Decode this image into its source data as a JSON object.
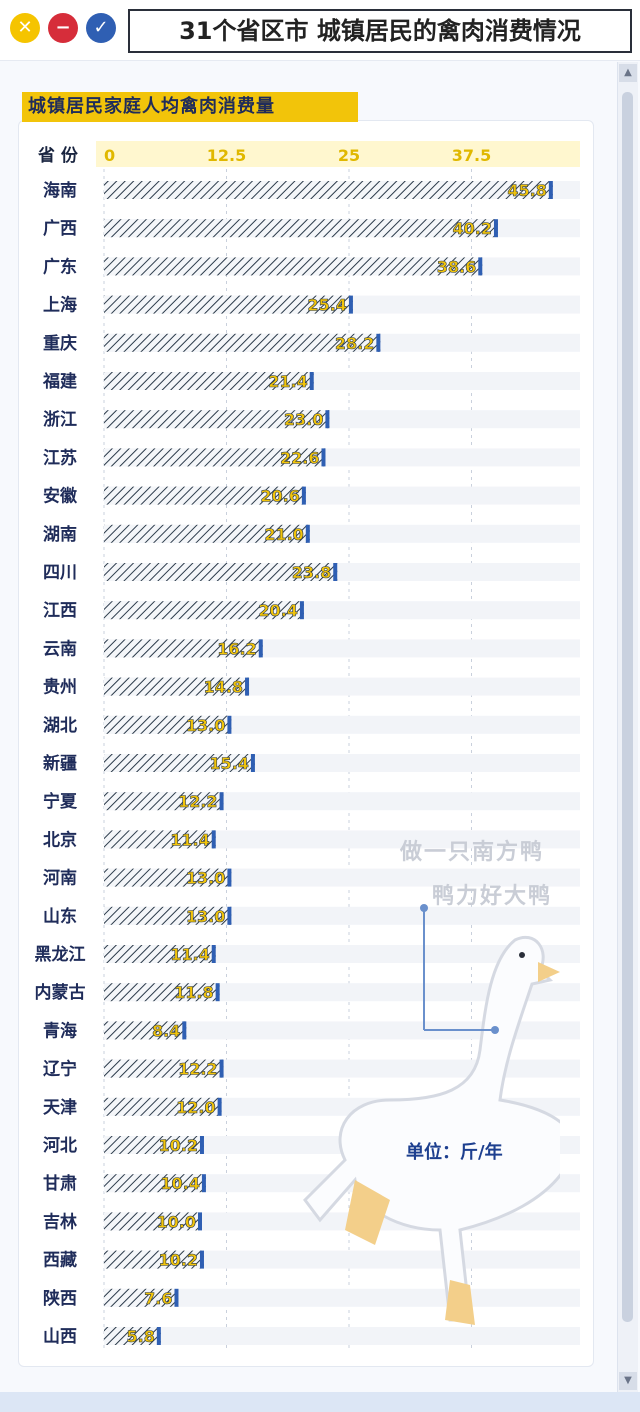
{
  "window": {
    "title": "31个省区市 城镇居民的禽肉消费情况",
    "buttons": {
      "close_icon": "x-icon",
      "minimize_icon": "minus-icon",
      "ok_icon": "check-icon"
    }
  },
  "subtitle": "城镇居民家庭人均禽肉消费量",
  "slogan": [
    "做一只南方鸭",
    "鸭力好大鸭"
  ],
  "unit_label": "单位：斤/年",
  "colors": {
    "accent": "#f2c40a",
    "bar_hatch": "#2b3a4a",
    "bar_end": "#2f5fb3",
    "title_border": "#2a2f3a"
  },
  "chart_data": {
    "type": "bar",
    "orientation": "horizontal",
    "category_header": "省 份",
    "xlim": [
      0,
      50
    ],
    "xticks": [
      "0",
      "12.5",
      "25",
      "37.5"
    ],
    "xtick_values": [
      0,
      12.5,
      25,
      37.5
    ],
    "grid": true,
    "unit": "单位：斤/年",
    "categories": [
      "海南",
      "广西",
      "广东",
      "上海",
      "重庆",
      "福建",
      "浙江",
      "江苏",
      "安徽",
      "湖南",
      "四川",
      "江西",
      "云南",
      "贵州",
      "湖北",
      "新疆",
      "宁夏",
      "北京",
      "河南",
      "山东",
      "黑龙江",
      "内蒙古",
      "青海",
      "辽宁",
      "天津",
      "河北",
      "甘肃",
      "吉林",
      "西藏",
      "陕西",
      "山西"
    ],
    "values": [
      45.8,
      40.2,
      38.6,
      25.4,
      28.2,
      21.4,
      23.0,
      22.6,
      20.6,
      21.0,
      23.8,
      20.4,
      16.2,
      14.8,
      13.0,
      15.4,
      12.2,
      11.4,
      13.0,
      13.0,
      11.4,
      11.8,
      8.4,
      12.2,
      12.0,
      10.2,
      10.4,
      10.0,
      10.2,
      7.6,
      5.8
    ],
    "value_labels": [
      "45.8",
      "40.2",
      "38.6",
      "25.4",
      "28.2",
      "21.4",
      "23.0",
      "22.6",
      "20.6",
      "21.0",
      "23.8",
      "20.4",
      "16.2",
      "14.8",
      "13.0",
      "15.4",
      "12.2",
      "11.4",
      "13.0",
      "13.0",
      "11.4",
      "11.8",
      "8.4",
      "12.2",
      "12.0",
      "10.2",
      "10.4",
      "10.0",
      "10.2",
      "7.6",
      "5.8"
    ]
  }
}
